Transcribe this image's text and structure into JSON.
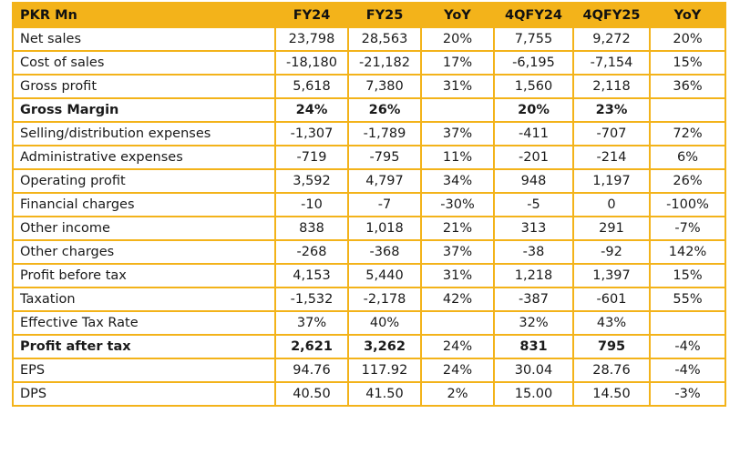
{
  "table": {
    "headers": [
      "PKR Mn",
      "FY24",
      "FY25",
      "YoY",
      "4QFY24",
      "4QFY25",
      "YoY"
    ],
    "rows": [
      {
        "label": "Net sales",
        "bold": false,
        "values": [
          "23,798",
          "28,563",
          "20%",
          "7,755",
          "9,272",
          "20%"
        ]
      },
      {
        "label": "Cost of sales",
        "bold": false,
        "values": [
          "-18,180",
          "-21,182",
          "17%",
          "-6,195",
          "-7,154",
          "15%"
        ]
      },
      {
        "label": "Gross profit",
        "bold": false,
        "values": [
          "5,618",
          "7,380",
          "31%",
          "1,560",
          "2,118",
          "36%"
        ]
      },
      {
        "label": "Gross Margin",
        "bold": true,
        "values": [
          "24%",
          "26%",
          "",
          "20%",
          "23%",
          ""
        ]
      },
      {
        "label": "Selling/distribution expenses",
        "bold": false,
        "values": [
          "-1,307",
          "-1,789",
          "37%",
          "-411",
          "-707",
          "72%"
        ]
      },
      {
        "label": "Administrative expenses",
        "bold": false,
        "values": [
          "-719",
          "-795",
          "11%",
          "-201",
          "-214",
          "6%"
        ]
      },
      {
        "label": "Operating profit",
        "bold": false,
        "values": [
          "3,592",
          "4,797",
          "34%",
          "948",
          "1,197",
          "26%"
        ]
      },
      {
        "label": "Financial charges",
        "bold": false,
        "values": [
          "-10",
          "-7",
          "-30%",
          "-5",
          "0",
          "-100%"
        ]
      },
      {
        "label": "Other income",
        "bold": false,
        "values": [
          "838",
          "1,018",
          "21%",
          "313",
          "291",
          "-7%"
        ]
      },
      {
        "label": "Other charges",
        "bold": false,
        "values": [
          "-268",
          "-368",
          "37%",
          "-38",
          "-92",
          "142%"
        ]
      },
      {
        "label": "Profit before tax",
        "bold": false,
        "values": [
          "4,153",
          "5,440",
          "31%",
          "1,218",
          "1,397",
          "15%"
        ]
      },
      {
        "label": "Taxation",
        "bold": false,
        "values": [
          "-1,532",
          "-2,178",
          "42%",
          "-387",
          "-601",
          "55%"
        ]
      },
      {
        "label": "Effective Tax Rate",
        "bold": false,
        "values": [
          "37%",
          "40%",
          "",
          "32%",
          "43%",
          ""
        ]
      },
      {
        "label": "Profit after tax",
        "bold": "partial",
        "values": [
          "2,621",
          "3,262",
          "24%",
          "831",
          "795",
          "-4%"
        ],
        "bold_cols": [
          0,
          1,
          3,
          4
        ]
      },
      {
        "label": "EPS",
        "bold": false,
        "values": [
          "94.76",
          "117.92",
          "24%",
          "30.04",
          "28.76",
          "-4%"
        ]
      },
      {
        "label": "DPS",
        "bold": false,
        "values": [
          "40.50",
          "41.50",
          "2%",
          "15.00",
          "14.50",
          "-3%"
        ]
      }
    ]
  },
  "colors": {
    "header_bg": "#F3B31A",
    "border": "#F3B31A"
  }
}
